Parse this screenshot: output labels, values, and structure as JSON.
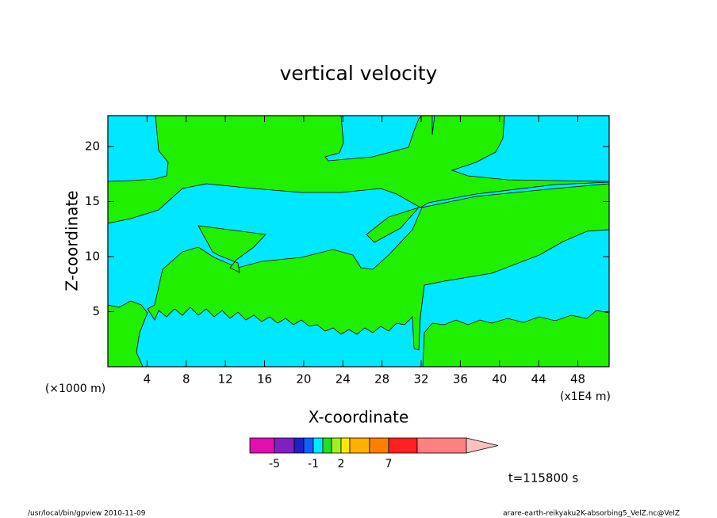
{
  "chart_data": {
    "type": "contour",
    "title": "vertical velocity",
    "x_label": "X-coordinate",
    "y_label": "Z-coordinate",
    "x_unit_left": "(×1000 m)",
    "x_unit_right": "(x1E4 m)",
    "time_label": "t=115800 s",
    "xlim": [
      0,
      51.2
    ],
    "ylim": [
      0,
      22.8
    ],
    "xticks": [
      4,
      8,
      12,
      16,
      20,
      24,
      28,
      32,
      36,
      40,
      44,
      48
    ],
    "yticks": [
      5,
      10,
      15,
      20
    ],
    "field_colors": {
      "negative": "#00e8ff",
      "positive": "#20f000"
    },
    "colorbar": {
      "levels": [
        -10,
        -5,
        -3,
        -2,
        -1,
        0,
        1,
        2,
        3,
        5,
        7,
        10,
        20
      ],
      "colors": [
        "#e010b0",
        "#8020c0",
        "#2020c8",
        "#1060ff",
        "#00e8ff",
        "#20e020",
        "#a0f020",
        "#ffe800",
        "#ffb000",
        "#ff8000",
        "#ff2020",
        "#ff8080"
      ],
      "extend_color": "#ffc0c0",
      "ticks": [
        -5,
        -1,
        2,
        7
      ]
    },
    "footer_left": "/usr/local/bin/gpview  2010-11-09",
    "footer_right": "arare-earth-reikyaku2K-absorbing5_VelZ.nc@VelZ"
  }
}
